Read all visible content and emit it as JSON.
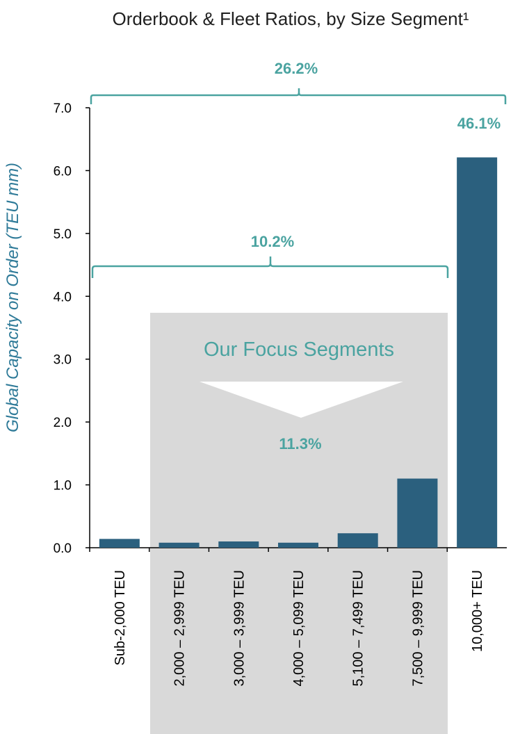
{
  "chart_data": {
    "type": "bar",
    "title": "Orderbook & Fleet Ratios, by Size Segment¹",
    "ylabel": "Global Capacity on Order (TEU mm)",
    "xlabel": "",
    "ylim": [
      0,
      7
    ],
    "yticks": [
      "0.0",
      "1.0",
      "2.0",
      "3.0",
      "4.0",
      "5.0",
      "6.0",
      "7.0"
    ],
    "categories": [
      "Sub-2,000 TEU",
      "2,000 – 2,999 TEU",
      "3,000 – 3,999 TEU",
      "4,000 – 5,099 TEU",
      "5,100 – 7,499 TEU",
      "7,500 – 9,999 TEU",
      "10,000+ TEU"
    ],
    "values": [
      0.14,
      0.08,
      0.1,
      0.08,
      0.23,
      1.1,
      6.21
    ],
    "grid": false,
    "bar_color": "#2b607e",
    "annotation_color": "#4aa3a0",
    "focus_shade_color": "#d9d9d9",
    "annotations": {
      "all_segments_ratio": "26.2%",
      "sub_10000_ratio": "10.2%",
      "large_ratio": "46.1%",
      "focus_ratio": "11.3%",
      "focus_label": "Our Focus Segments"
    }
  }
}
